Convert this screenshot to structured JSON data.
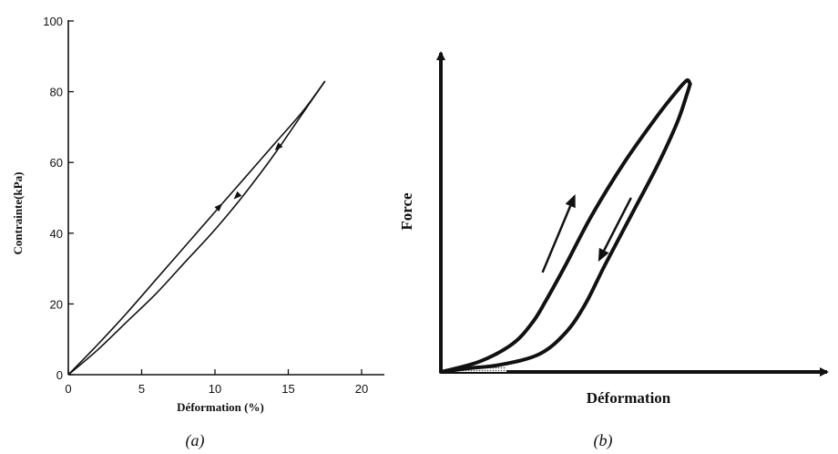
{
  "colors": {
    "ink": "#111111",
    "background": "#ffffff"
  },
  "chart_data": [
    {
      "panel": "a",
      "type": "line",
      "title": "",
      "xlabel": "Déformation (%)",
      "ylabel": "Contrainte(kPa)",
      "xlim": [
        0,
        21
      ],
      "ylim": [
        0,
        100
      ],
      "x_ticks": [
        "0",
        "5",
        "10",
        "15",
        "20"
      ],
      "y_ticks": [
        "0",
        "20",
        "40",
        "60",
        "80",
        "100"
      ],
      "grid": false,
      "legend": "none",
      "series": [
        {
          "direction": "loading",
          "x": [
            0,
            2,
            4,
            6,
            8,
            10,
            12,
            14,
            16,
            17.5
          ],
          "y": [
            0,
            8.5,
            17.5,
            27,
            36.5,
            46,
            55.5,
            65,
            74.5,
            83
          ]
        },
        {
          "direction": "unloading",
          "x": [
            17.5,
            16,
            14,
            12,
            10,
            8,
            6,
            4,
            2,
            0
          ],
          "y": [
            83,
            74,
            62,
            51,
            41,
            32,
            23,
            15,
            7,
            0
          ]
        }
      ],
      "arrows": [
        {
          "x": 10.3,
          "y": 47.5,
          "direction": "up"
        },
        {
          "x": 11.5,
          "y": 50.5,
          "direction": "down"
        },
        {
          "x": 14.3,
          "y": 64.3,
          "direction": "down"
        }
      ],
      "caption": "(a)"
    },
    {
      "panel": "b",
      "type": "line",
      "title": "",
      "xlabel": "Déformation",
      "ylabel": "Force",
      "xlim": [
        0,
        100
      ],
      "ylim": [
        0,
        100
      ],
      "ticks": false,
      "grid": false,
      "legend": "none",
      "series": [
        {
          "direction": "loading",
          "x": [
            0,
            12,
            22,
            28,
            32,
            38,
            46,
            56,
            66,
            72,
            75,
            76
          ],
          "y": [
            0,
            3,
            8,
            14,
            20,
            30,
            44,
            59,
            72,
            79,
            82,
            81
          ]
        },
        {
          "direction": "unloading",
          "x": [
            76,
            75,
            72,
            66,
            58,
            50,
            44,
            38,
            30,
            18,
            8,
            0
          ],
          "y": [
            81,
            78,
            70,
            58,
            44,
            30,
            19,
            11,
            5,
            2,
            1,
            0
          ]
        }
      ],
      "arrows": [
        {
          "x1": 31,
          "y1": 28,
          "x2": 41,
          "y2": 50,
          "direction": "up"
        },
        {
          "x1": 58,
          "y1": 49,
          "x2": 48,
          "y2": 31,
          "direction": "down"
        }
      ],
      "shaded_origin": true,
      "caption": "(b)"
    }
  ]
}
